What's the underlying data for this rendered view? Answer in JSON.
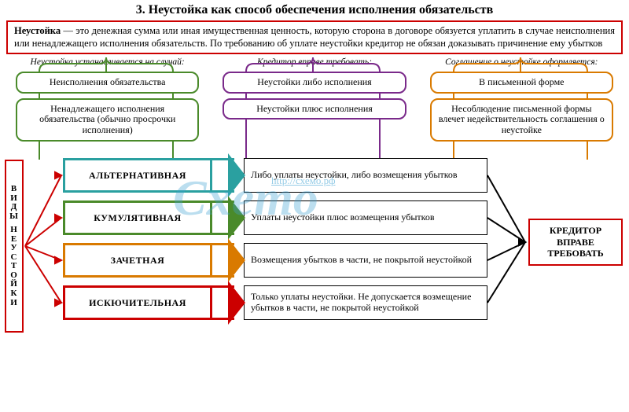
{
  "colors": {
    "red": "#cc0000",
    "green": "#4a8a2a",
    "purple": "#7a2a8a",
    "orange": "#d97a00",
    "blue": "#2a6acc",
    "teal": "#2aa0a0",
    "black": "#000000",
    "watermark": "rgba(60,160,210,0.35)"
  },
  "title": "3. Неустойка как способ обеспечения исполнения обязательств",
  "definition": {
    "term": "Неустойка",
    "rest": " — это денежная сумма или иная имущественная ценность, которую сторона в договоре обязуется упла­тить в случае неисполнения или ненадлежащего исполнения обязательств. По требованию об уплате неустойки кре­дитор не обязан доказывать причинение ему убытков",
    "border_color": "#cc0000"
  },
  "top_columns": [
    {
      "label": "Неустойка устанавлива­ется на случай:",
      "color": "#4a8a2a",
      "boxes": [
        "Неисполнения обязательства",
        "Ненадлежащего исполнения обязательства (обычно про­срочки исполнения)"
      ]
    },
    {
      "label": "Кредитор вправе требовать:",
      "color": "#7a2a8a",
      "boxes": [
        "Неустойки либо исполнения",
        "Неустойки плюс исполнения"
      ]
    },
    {
      "label": "Соглашение о неустойке оформляется:",
      "color": "#d97a00",
      "boxes": [
        "В письменной форме",
        "Несоблюдение письменной формы влечет недействитель­ность соглашения о неустойке"
      ]
    }
  ],
  "side_label": {
    "text": "ВИДЫ НЕУСТОЙКИ",
    "color": "#cc0000"
  },
  "types": [
    {
      "name": "АЛЬТЕРНАТИВНАЯ",
      "color": "#2aa0a0",
      "desc": "Либо уплаты неустойки, либо воз­мещения убытков"
    },
    {
      "name": "КУМУЛЯТИВНАЯ",
      "color": "#4a8a2a",
      "desc": "Уплаты неустойки плюс возмеще­ния убытков"
    },
    {
      "name": "ЗАЧЕТНАЯ",
      "color": "#d97a00",
      "desc": "Возмещения убытков в части, не покрытой неустойкой"
    },
    {
      "name": "ИСКЮЧИТЕЛЬНАЯ",
      "color": "#cc0000",
      "desc": "Только уплаты неустойки. Не до­пускается возмещение убытков в части, не покрытой неустойкой"
    }
  ],
  "right_label": {
    "text": "КРЕДИТОР ВПРАВЕ ТРЕБОВАТЬ",
    "color": "#cc0000"
  },
  "watermark": {
    "big": "Cxemo",
    "url": "http://схемо.рф"
  }
}
